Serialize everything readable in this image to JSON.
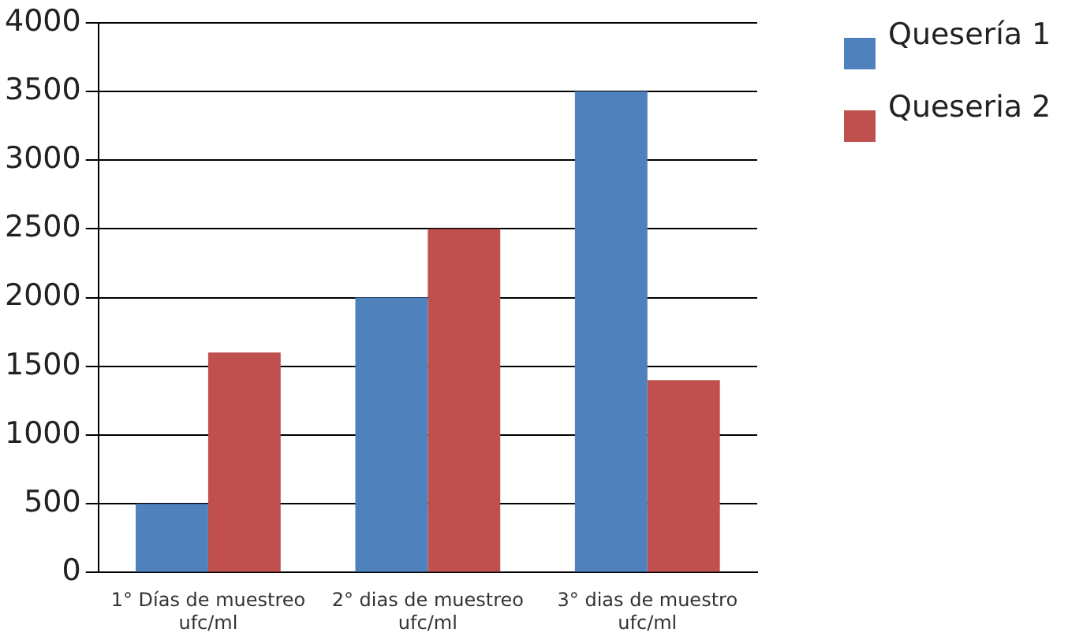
{
  "chart_data": {
    "type": "bar",
    "categories": [
      "1° Días de muestreo ufc/ml",
      "2° dias de muestreo ufc/ml",
      "3° dias de muestro ufc/ml"
    ],
    "series": [
      {
        "name": "Quesería 1",
        "color": "#4f81bd",
        "values": [
          500,
          2000,
          3500
        ]
      },
      {
        "name": "Queseria 2",
        "color": "#c0504d",
        "values": [
          1600,
          2500,
          1400
        ]
      }
    ],
    "ylim": [
      0,
      4000
    ],
    "yticks": [
      0,
      500,
      1000,
      1500,
      2000,
      2500,
      3000,
      3500,
      4000
    ],
    "grid": "y",
    "legend": "right"
  }
}
